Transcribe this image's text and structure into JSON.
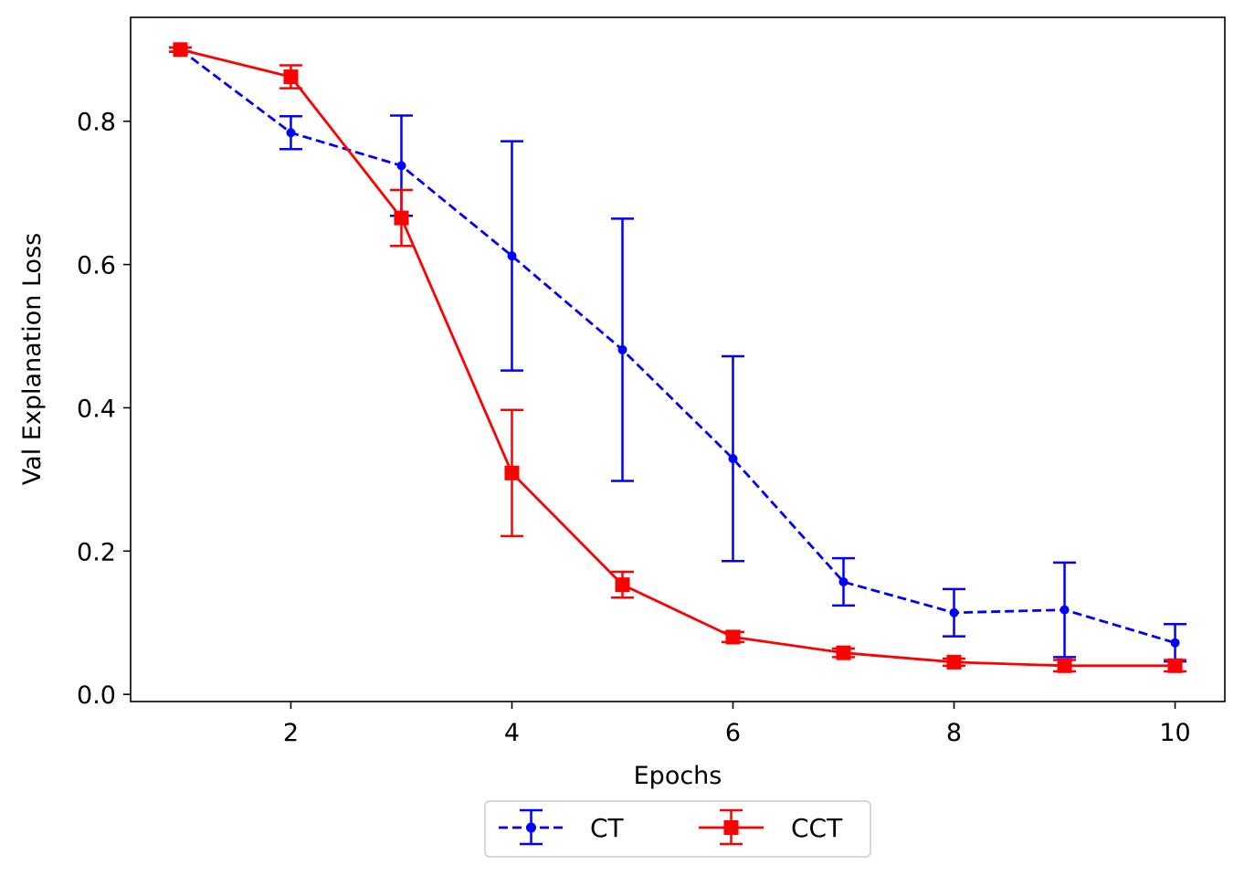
{
  "chart_data": {
    "type": "line",
    "title": "",
    "xlabel": "Epochs",
    "ylabel": "Val Explanation Loss",
    "xlim": [
      0.55,
      10.45
    ],
    "ylim": [
      -0.01,
      0.945
    ],
    "xticks": [
      2,
      4,
      6,
      8,
      10
    ],
    "xtick_labels": [
      "2",
      "4",
      "6",
      "8",
      "10"
    ],
    "yticks": [
      0.0,
      0.2,
      0.4,
      0.6,
      0.8
    ],
    "ytick_labels": [
      "0.0",
      "0.2",
      "0.4",
      "0.6",
      "0.8"
    ],
    "grid": false,
    "legend_position": "below-center",
    "x": [
      1,
      2,
      3,
      4,
      5,
      6,
      7,
      8,
      9,
      10
    ],
    "series": [
      {
        "name": "CT",
        "color": "#0000ff",
        "linestyle": "dashed",
        "marker": "circle",
        "values": [
          0.9,
          0.784,
          0.738,
          0.612,
          0.481,
          0.329,
          0.157,
          0.114,
          0.118,
          0.072
        ],
        "errors": [
          0.003,
          0.023,
          0.07,
          0.16,
          0.183,
          0.143,
          0.033,
          0.033,
          0.066,
          0.026
        ]
      },
      {
        "name": "CCT",
        "color": "#ff0000",
        "linestyle": "solid",
        "marker": "square",
        "values": [
          0.9,
          0.862,
          0.665,
          0.309,
          0.153,
          0.08,
          0.058,
          0.045,
          0.04,
          0.04
        ],
        "errors": [
          0.003,
          0.016,
          0.039,
          0.088,
          0.018,
          0.007,
          0.006,
          0.005,
          0.008,
          0.008
        ]
      }
    ]
  }
}
